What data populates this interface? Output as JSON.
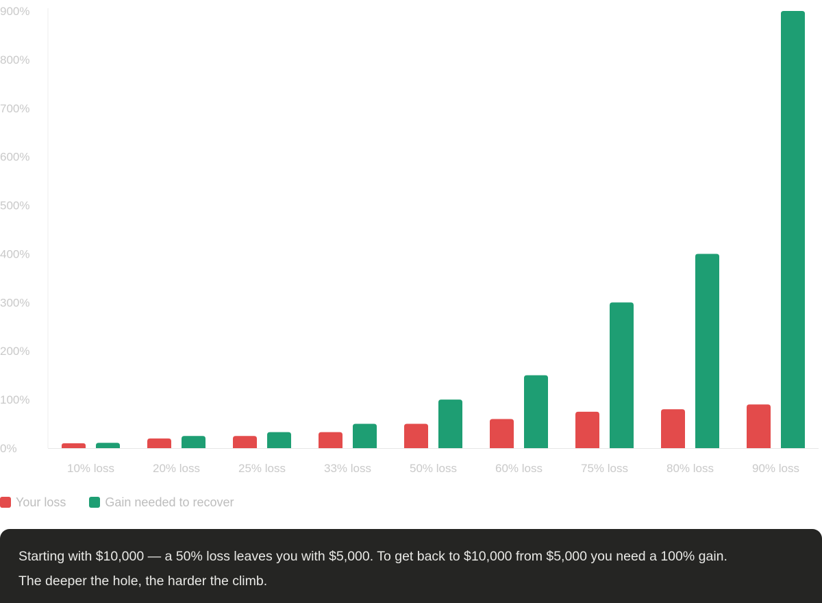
{
  "colors": {
    "loss": "#e34b4b",
    "gain": "#1e9e73",
    "axis_text": "#c9c9c9",
    "caption_bg": "#252523",
    "caption_text": "#e9e9e6"
  },
  "chart_data": {
    "type": "bar",
    "categories": [
      "10% loss",
      "20% loss",
      "25% loss",
      "33% loss",
      "50% loss",
      "60% loss",
      "75% loss",
      "80% loss",
      "90% loss"
    ],
    "series": [
      {
        "name": "Your loss",
        "color": "#e34b4b",
        "values": [
          10,
          20,
          25,
          33,
          50,
          60,
          75,
          80,
          90
        ]
      },
      {
        "name": "Gain needed to recover",
        "color": "#1e9e73",
        "values": [
          11,
          25,
          33,
          50,
          100,
          150,
          300,
          400,
          900
        ]
      }
    ],
    "yticks": [
      "0%",
      "100%",
      "200%",
      "300%",
      "400%",
      "500%",
      "600%",
      "700%",
      "800%",
      "900%"
    ],
    "ylim": [
      0,
      900
    ],
    "title": "",
    "xlabel": "",
    "ylabel": "",
    "legend": "bottom-left",
    "grid": false
  },
  "legend": {
    "items": [
      {
        "label": "Your loss",
        "color": "#e34b4b"
      },
      {
        "label": "Gain needed to recover",
        "color": "#1e9e73"
      }
    ]
  },
  "caption": {
    "line1": "Starting with $10,000 — a 50% loss leaves you with $5,000. To get back to $10,000 from $5,000 you need a 100% gain.",
    "line2": "The deeper the hole, the harder the climb."
  }
}
